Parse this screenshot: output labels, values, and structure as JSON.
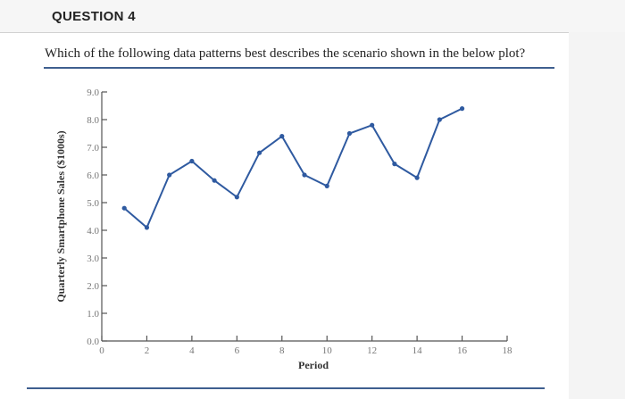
{
  "question": {
    "title": "QUESTION 4",
    "text": "Which of the following data patterns best describes the scenario shown in the below plot?"
  },
  "chart_data": {
    "type": "line",
    "title": "",
    "xlabel": "Period",
    "ylabel": "Quarterly Smartphone Sales ($1000s)",
    "xlim": [
      0,
      18
    ],
    "ylim": [
      0,
      9
    ],
    "x_ticks": [
      0,
      2,
      4,
      6,
      8,
      10,
      12,
      14,
      16,
      18
    ],
    "y_ticks": [
      "0.0",
      "1.0",
      "2.0",
      "3.0",
      "4.0",
      "5.0",
      "6.0",
      "7.0",
      "8.0",
      "9.0"
    ],
    "grid": false,
    "series": [
      {
        "x": [
          1,
          2,
          3,
          4,
          5,
          6,
          7,
          8,
          9,
          10,
          11,
          12,
          13,
          14,
          15,
          16
        ],
        "y": [
          4.8,
          4.1,
          6.0,
          6.5,
          5.8,
          5.2,
          6.8,
          7.4,
          6.0,
          5.6,
          7.5,
          7.8,
          6.4,
          5.9,
          8.0,
          8.4
        ]
      }
    ],
    "colors": {
      "line": "#2f5aa0",
      "axis": "#555555"
    }
  }
}
